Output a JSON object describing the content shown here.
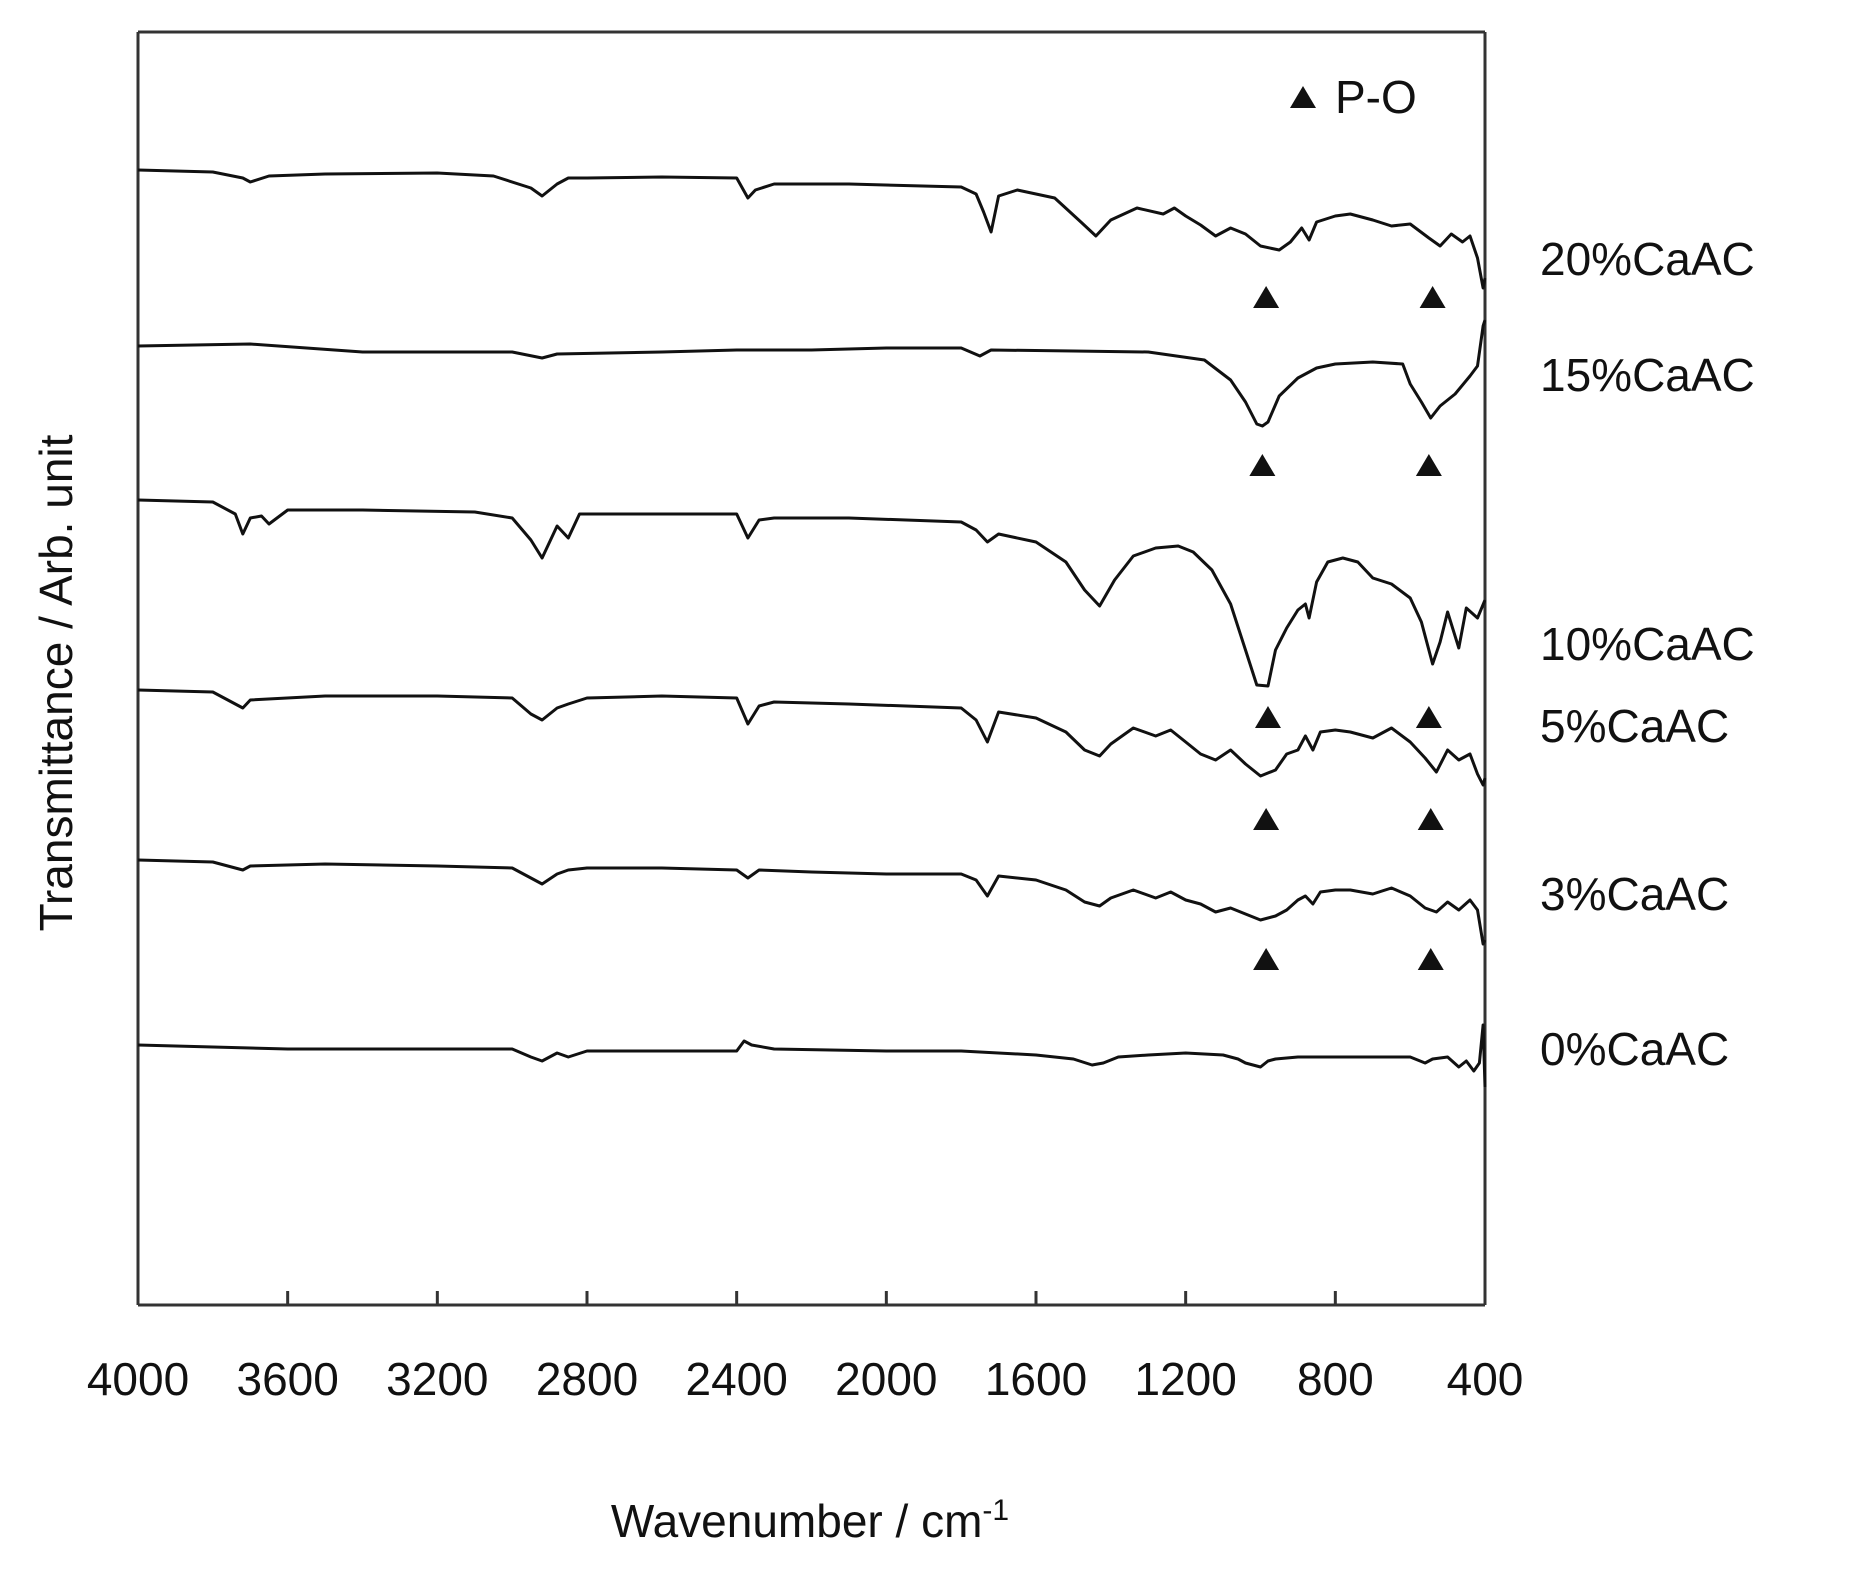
{
  "chart_data": {
    "type": "line",
    "title": "",
    "xlabel": "Wavenumber / cm",
    "xlabel_superscript": "-1",
    "ylabel": "Transmittance / Arb. unit",
    "xlim": [
      4000,
      400
    ],
    "x_reversed": true,
    "x_ticks": [
      4000,
      3600,
      3200,
      2800,
      2400,
      2000,
      1600,
      1200,
      800,
      400
    ],
    "y_ticks_shown": false,
    "grid": false,
    "legend": {
      "placement": "top-right",
      "marker": "triangle",
      "label": "P-O"
    },
    "colors": {
      "line": "#111111",
      "axis": "#333333"
    },
    "series": [
      {
        "name": "20%CaAC",
        "baseline": 0,
        "points": [
          [
            4000,
            0
          ],
          [
            3800,
            2
          ],
          [
            3720,
            8
          ],
          [
            3700,
            12
          ],
          [
            3650,
            6
          ],
          [
            3500,
            4
          ],
          [
            3200,
            3
          ],
          [
            3050,
            6
          ],
          [
            2950,
            18
          ],
          [
            2920,
            26
          ],
          [
            2880,
            14
          ],
          [
            2850,
            8
          ],
          [
            2800,
            8
          ],
          [
            2600,
            7
          ],
          [
            2400,
            8
          ],
          [
            2370,
            28
          ],
          [
            2350,
            20
          ],
          [
            2300,
            14
          ],
          [
            2100,
            14
          ],
          [
            1800,
            17
          ],
          [
            1760,
            24
          ],
          [
            1740,
            42
          ],
          [
            1720,
            62
          ],
          [
            1700,
            26
          ],
          [
            1650,
            20
          ],
          [
            1550,
            28
          ],
          [
            1480,
            52
          ],
          [
            1440,
            66
          ],
          [
            1400,
            50
          ],
          [
            1330,
            38
          ],
          [
            1260,
            44
          ],
          [
            1230,
            38
          ],
          [
            1200,
            46
          ],
          [
            1160,
            55
          ],
          [
            1120,
            66
          ],
          [
            1080,
            58
          ],
          [
            1040,
            64
          ],
          [
            1000,
            76
          ],
          [
            950,
            80
          ],
          [
            920,
            72
          ],
          [
            890,
            58
          ],
          [
            870,
            70
          ],
          [
            850,
            52
          ],
          [
            800,
            46
          ],
          [
            760,
            44
          ],
          [
            700,
            50
          ],
          [
            650,
            56
          ],
          [
            600,
            54
          ],
          [
            550,
            68
          ],
          [
            520,
            76
          ],
          [
            490,
            64
          ],
          [
            460,
            72
          ],
          [
            440,
            66
          ],
          [
            420,
            88
          ],
          [
            405,
            118
          ],
          [
            400,
            108
          ]
        ],
        "markers_x": [
          985,
          540
        ]
      },
      {
        "name": "15%CaAC",
        "baseline": 176,
        "points": [
          [
            4000,
            0
          ],
          [
            3700,
            -2
          ],
          [
            3400,
            6
          ],
          [
            3200,
            6
          ],
          [
            3000,
            6
          ],
          [
            2920,
            12
          ],
          [
            2880,
            8
          ],
          [
            2600,
            6
          ],
          [
            2400,
            4
          ],
          [
            2200,
            4
          ],
          [
            2000,
            2
          ],
          [
            1800,
            2
          ],
          [
            1750,
            10
          ],
          [
            1720,
            4
          ],
          [
            1500,
            5
          ],
          [
            1300,
            6
          ],
          [
            1150,
            14
          ],
          [
            1080,
            34
          ],
          [
            1040,
            56
          ],
          [
            1010,
            78
          ],
          [
            995,
            80
          ],
          [
            980,
            76
          ],
          [
            950,
            50
          ],
          [
            900,
            32
          ],
          [
            850,
            22
          ],
          [
            800,
            18
          ],
          [
            700,
            16
          ],
          [
            620,
            18
          ],
          [
            600,
            38
          ],
          [
            570,
            56
          ],
          [
            545,
            72
          ],
          [
            520,
            60
          ],
          [
            480,
            48
          ],
          [
            440,
            30
          ],
          [
            420,
            20
          ],
          [
            405,
            -20
          ],
          [
            400,
            -26
          ]
        ],
        "markers_x": [
          995,
          550
        ]
      },
      {
        "name": "10%CaAC",
        "baseline": 330,
        "points": [
          [
            4000,
            0
          ],
          [
            3800,
            2
          ],
          [
            3740,
            14
          ],
          [
            3720,
            34
          ],
          [
            3700,
            18
          ],
          [
            3670,
            16
          ],
          [
            3650,
            24
          ],
          [
            3600,
            10
          ],
          [
            3400,
            10
          ],
          [
            3100,
            12
          ],
          [
            3000,
            18
          ],
          [
            2950,
            40
          ],
          [
            2920,
            58
          ],
          [
            2880,
            26
          ],
          [
            2850,
            38
          ],
          [
            2820,
            14
          ],
          [
            2700,
            14
          ],
          [
            2400,
            14
          ],
          [
            2370,
            38
          ],
          [
            2340,
            20
          ],
          [
            2300,
            18
          ],
          [
            2100,
            18
          ],
          [
            1800,
            22
          ],
          [
            1760,
            30
          ],
          [
            1730,
            42
          ],
          [
            1700,
            34
          ],
          [
            1600,
            42
          ],
          [
            1520,
            62
          ],
          [
            1470,
            90
          ],
          [
            1430,
            106
          ],
          [
            1390,
            80
          ],
          [
            1340,
            56
          ],
          [
            1280,
            48
          ],
          [
            1220,
            46
          ],
          [
            1180,
            52
          ],
          [
            1130,
            70
          ],
          [
            1080,
            104
          ],
          [
            1040,
            150
          ],
          [
            1010,
            185
          ],
          [
            980,
            186
          ],
          [
            960,
            150
          ],
          [
            930,
            128
          ],
          [
            900,
            110
          ],
          [
            880,
            104
          ],
          [
            870,
            118
          ],
          [
            850,
            82
          ],
          [
            820,
            62
          ],
          [
            780,
            58
          ],
          [
            740,
            62
          ],
          [
            700,
            78
          ],
          [
            650,
            84
          ],
          [
            600,
            98
          ],
          [
            570,
            122
          ],
          [
            540,
            164
          ],
          [
            520,
            142
          ],
          [
            500,
            112
          ],
          [
            470,
            148
          ],
          [
            450,
            108
          ],
          [
            420,
            118
          ],
          [
            400,
            100
          ]
        ],
        "markers_x": [
          980,
          550
        ]
      },
      {
        "name": "5%CaAC",
        "baseline": 520,
        "points": [
          [
            4000,
            0
          ],
          [
            3800,
            2
          ],
          [
            3740,
            14
          ],
          [
            3720,
            18
          ],
          [
            3700,
            10
          ],
          [
            3500,
            6
          ],
          [
            3200,
            6
          ],
          [
            3000,
            8
          ],
          [
            2950,
            24
          ],
          [
            2920,
            30
          ],
          [
            2880,
            18
          ],
          [
            2850,
            14
          ],
          [
            2800,
            8
          ],
          [
            2600,
            6
          ],
          [
            2400,
            8
          ],
          [
            2370,
            34
          ],
          [
            2340,
            16
          ],
          [
            2300,
            12
          ],
          [
            2100,
            14
          ],
          [
            1800,
            18
          ],
          [
            1760,
            30
          ],
          [
            1730,
            52
          ],
          [
            1700,
            22
          ],
          [
            1600,
            28
          ],
          [
            1520,
            42
          ],
          [
            1470,
            60
          ],
          [
            1430,
            66
          ],
          [
            1400,
            54
          ],
          [
            1340,
            38
          ],
          [
            1280,
            46
          ],
          [
            1240,
            40
          ],
          [
            1200,
            52
          ],
          [
            1160,
            64
          ],
          [
            1120,
            70
          ],
          [
            1080,
            60
          ],
          [
            1040,
            74
          ],
          [
            1000,
            86
          ],
          [
            960,
            80
          ],
          [
            930,
            64
          ],
          [
            900,
            60
          ],
          [
            880,
            46
          ],
          [
            860,
            60
          ],
          [
            840,
            42
          ],
          [
            800,
            40
          ],
          [
            760,
            42
          ],
          [
            700,
            48
          ],
          [
            650,
            38
          ],
          [
            600,
            52
          ],
          [
            560,
            68
          ],
          [
            530,
            82
          ],
          [
            500,
            60
          ],
          [
            470,
            70
          ],
          [
            440,
            64
          ],
          [
            420,
            84
          ],
          [
            405,
            95
          ],
          [
            400,
            88
          ]
        ],
        "markers_x": [
          985,
          545
        ]
      },
      {
        "name": "3%CaAC",
        "baseline": 690,
        "points": [
          [
            4000,
            0
          ],
          [
            3800,
            2
          ],
          [
            3720,
            10
          ],
          [
            3700,
            6
          ],
          [
            3500,
            4
          ],
          [
            3200,
            6
          ],
          [
            3000,
            8
          ],
          [
            2950,
            18
          ],
          [
            2920,
            24
          ],
          [
            2880,
            14
          ],
          [
            2850,
            10
          ],
          [
            2800,
            8
          ],
          [
            2600,
            8
          ],
          [
            2400,
            10
          ],
          [
            2370,
            18
          ],
          [
            2340,
            10
          ],
          [
            2200,
            12
          ],
          [
            2000,
            14
          ],
          [
            1800,
            14
          ],
          [
            1760,
            20
          ],
          [
            1730,
            36
          ],
          [
            1700,
            16
          ],
          [
            1600,
            20
          ],
          [
            1520,
            30
          ],
          [
            1470,
            42
          ],
          [
            1430,
            46
          ],
          [
            1400,
            38
          ],
          [
            1340,
            30
          ],
          [
            1280,
            38
          ],
          [
            1240,
            32
          ],
          [
            1200,
            40
          ],
          [
            1160,
            44
          ],
          [
            1120,
            52
          ],
          [
            1080,
            48
          ],
          [
            1040,
            54
          ],
          [
            1000,
            60
          ],
          [
            960,
            56
          ],
          [
            930,
            50
          ],
          [
            900,
            40
          ],
          [
            880,
            36
          ],
          [
            860,
            44
          ],
          [
            840,
            32
          ],
          [
            800,
            30
          ],
          [
            760,
            30
          ],
          [
            700,
            34
          ],
          [
            650,
            28
          ],
          [
            600,
            36
          ],
          [
            560,
            48
          ],
          [
            530,
            52
          ],
          [
            500,
            42
          ],
          [
            470,
            50
          ],
          [
            440,
            40
          ],
          [
            420,
            50
          ],
          [
            405,
            84
          ],
          [
            400,
            80
          ]
        ],
        "markers_x": [
          985,
          545
        ]
      },
      {
        "name": "0%CaAC",
        "baseline": 875,
        "points": [
          [
            4000,
            0
          ],
          [
            3800,
            2
          ],
          [
            3600,
            4
          ],
          [
            3400,
            4
          ],
          [
            3000,
            4
          ],
          [
            2950,
            12
          ],
          [
            2920,
            16
          ],
          [
            2880,
            8
          ],
          [
            2850,
            12
          ],
          [
            2800,
            6
          ],
          [
            2600,
            6
          ],
          [
            2400,
            6
          ],
          [
            2380,
            -4
          ],
          [
            2360,
            0
          ],
          [
            2300,
            4
          ],
          [
            2000,
            6
          ],
          [
            1800,
            6
          ],
          [
            1600,
            10
          ],
          [
            1500,
            14
          ],
          [
            1450,
            20
          ],
          [
            1420,
            18
          ],
          [
            1380,
            12
          ],
          [
            1300,
            10
          ],
          [
            1200,
            8
          ],
          [
            1100,
            10
          ],
          [
            1060,
            14
          ],
          [
            1040,
            18
          ],
          [
            1000,
            22
          ],
          [
            980,
            16
          ],
          [
            960,
            14
          ],
          [
            900,
            12
          ],
          [
            800,
            12
          ],
          [
            700,
            12
          ],
          [
            600,
            12
          ],
          [
            560,
            18
          ],
          [
            540,
            14
          ],
          [
            500,
            12
          ],
          [
            470,
            22
          ],
          [
            450,
            16
          ],
          [
            430,
            26
          ],
          [
            415,
            18
          ],
          [
            405,
            -20
          ],
          [
            400,
            42
          ]
        ],
        "markers_x": []
      }
    ]
  }
}
